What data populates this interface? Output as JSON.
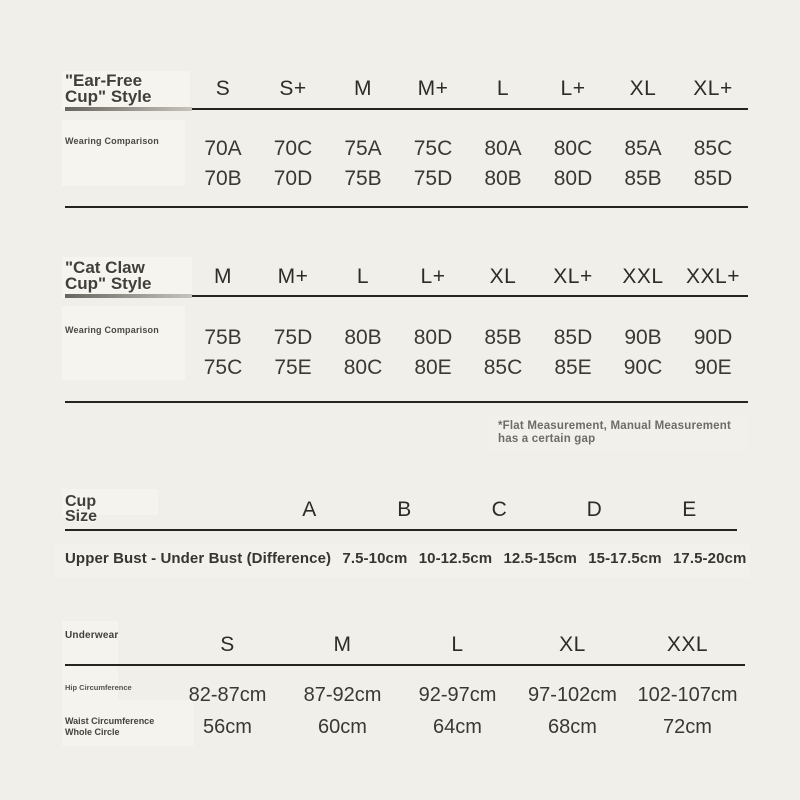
{
  "colors": {
    "background": "#f1efe9",
    "panel": "#f6f4ef",
    "rule": "#26241f",
    "heading_text": "#2e2c28",
    "value_text": "#3a3833",
    "muted_text": "#6d6c66"
  },
  "ear_free_table": {
    "title_line1": "\"Ear-Free",
    "title_line2": "Cup\" Style",
    "row_label": "Wearing Comparison",
    "sizes": [
      "S",
      "S+",
      "M",
      "M+",
      "L",
      "L+",
      "XL",
      "XL+"
    ],
    "row1": [
      "70A",
      "70C",
      "75A",
      "75C",
      "80A",
      "80C",
      "85A",
      "85C"
    ],
    "row2": [
      "70B",
      "70D",
      "75B",
      "75D",
      "80B",
      "80D",
      "85B",
      "85D"
    ]
  },
  "cat_claw_table": {
    "title_line1": "\"Cat Claw",
    "title_line2": "Cup\" Style",
    "row_label": "Wearing Comparison",
    "sizes": [
      "M",
      "M+",
      "L",
      "L+",
      "XL",
      "XL+",
      "XXL",
      "XXL+"
    ],
    "row1": [
      "75B",
      "75D",
      "80B",
      "80D",
      "85B",
      "85D",
      "90B",
      "90D"
    ],
    "row2": [
      "75C",
      "75E",
      "80C",
      "80E",
      "85C",
      "85E",
      "90C",
      "90E"
    ]
  },
  "note": {
    "line1": "*Flat Measurement, Manual Measurement",
    "line2": "has a certain gap"
  },
  "cup_size_table": {
    "title_line1": "Cup",
    "title_line2": "Size",
    "cups": [
      "A",
      "B",
      "C",
      "D",
      "E"
    ],
    "difference_label": "Upper Bust - Under Bust (Difference)",
    "difference_values": [
      "7.5-10cm",
      "10-12.5cm",
      "12.5-15cm",
      "15-17.5cm",
      "17.5-20cm"
    ]
  },
  "underwear_table": {
    "title": "Underwear",
    "sizes": [
      "S",
      "M",
      "L",
      "XL",
      "XXL"
    ],
    "hip_label": "Hip Circumference",
    "hip_values": [
      "82-87cm",
      "87-92cm",
      "92-97cm",
      "97-102cm",
      "102-107cm"
    ],
    "waist_label_line1": "Waist Circumference",
    "waist_label_line2": "Whole Circle",
    "waist_values": [
      "56cm",
      "60cm",
      "64cm",
      "68cm",
      "72cm"
    ]
  }
}
